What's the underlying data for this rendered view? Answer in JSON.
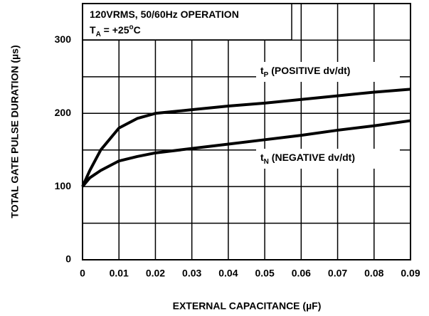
{
  "chart_data": {
    "type": "line",
    "annotation_lines": [
      [
        "120VRMS, 50/60Hz OPERATION"
      ],
      [
        "T",
        "A",
        " = +25",
        "o",
        "C"
      ]
    ],
    "xlabel": "EXTERNAL CAPACITANCE (µF)",
    "ylabel": "TOTAL GATE PULSE DURATION (µs)",
    "x": [
      0,
      0.002,
      0.005,
      0.01,
      0.015,
      0.02,
      0.03,
      0.04,
      0.05,
      0.06,
      0.07,
      0.08,
      0.09
    ],
    "series": [
      {
        "name_parts": [
          "t",
          "P",
          " (POSITIVE dv/dt)"
        ],
        "color": "#000000",
        "values": [
          100,
          122,
          150,
          180,
          193,
          200,
          205,
          210,
          214,
          219,
          224,
          229,
          233
        ]
      },
      {
        "name_parts": [
          "t",
          "N",
          " (NEGATIVE dv/dt)"
        ],
        "color": "#000000",
        "values": [
          100,
          112,
          122,
          135,
          141,
          146,
          152,
          158,
          164,
          170,
          177,
          183,
          190
        ]
      }
    ],
    "xlim": [
      0,
      0.09
    ],
    "xticks": [
      0,
      0.01,
      0.02,
      0.03,
      0.04,
      0.05,
      0.06,
      0.07,
      0.08,
      0.09
    ],
    "ylim": [
      0,
      350
    ],
    "yticks": [
      0,
      100,
      200,
      300
    ],
    "yminor_grid": [
      50,
      150,
      250
    ],
    "grid": true
  }
}
